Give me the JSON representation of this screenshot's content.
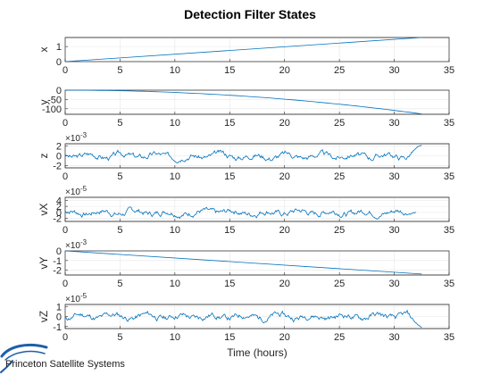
{
  "chart_data": [
    {
      "type": "line",
      "ylabel": "x",
      "xlim": [
        0,
        35
      ],
      "ylim": [
        0,
        1.6
      ],
      "xticks": [
        "0",
        "5",
        "10",
        "15",
        "20",
        "25",
        "30",
        "35"
      ],
      "yticks": [
        "0",
        "1"
      ],
      "ytick_values": [
        0,
        1
      ],
      "exponent": "",
      "series": [
        {
          "shape": "linear",
          "x": [
            0,
            32.5
          ],
          "y": [
            0,
            1.6
          ]
        }
      ]
    },
    {
      "type": "line",
      "ylabel": "y",
      "xlim": [
        0,
        35
      ],
      "ylim": [
        -130,
        0
      ],
      "xticks": [
        "0",
        "5",
        "10",
        "15",
        "20",
        "25",
        "30",
        "35"
      ],
      "yticks": [
        "0",
        "-50",
        "-100"
      ],
      "ytick_values": [
        0,
        -50,
        -100
      ],
      "exponent": "",
      "series": [
        {
          "shape": "quadratic",
          "x": [
            0,
            32.5
          ],
          "y": [
            0,
            -128
          ]
        }
      ]
    },
    {
      "type": "line",
      "ylabel": "z",
      "xlim": [
        0,
        35
      ],
      "ylim": [
        -2.5,
        2.5
      ],
      "xticks": [
        "0",
        "5",
        "10",
        "15",
        "20",
        "25",
        "30",
        "35"
      ],
      "yticks": [
        "2",
        "0",
        "-2"
      ],
      "ytick_values": [
        2,
        0,
        -2
      ],
      "exponent": "×10",
      "exponent_power": "-3",
      "series": [
        {
          "shape": "noise",
          "x": [
            0,
            32.5
          ],
          "amplitude": 0.8,
          "seed": 3,
          "tail_end": 2.2
        }
      ]
    },
    {
      "type": "line",
      "ylabel": "vX",
      "xlim": [
        0,
        35
      ],
      "ylim": [
        -3,
        5
      ],
      "xticks": [
        "0",
        "5",
        "10",
        "15",
        "20",
        "25",
        "30",
        "35"
      ],
      "yticks": [
        "4",
        "2",
        "0",
        "-2"
      ],
      "ytick_values": [
        4,
        2,
        0,
        -2
      ],
      "exponent": "×10",
      "exponent_power": "-5",
      "series": [
        {
          "shape": "noise",
          "x": [
            0,
            32
          ],
          "amplitude": 1.3,
          "seed": 7,
          "tail_end": 0
        }
      ]
    },
    {
      "type": "line",
      "ylabel": "vY",
      "xlim": [
        0,
        35
      ],
      "ylim": [
        -2.5,
        0
      ],
      "xticks": [
        "0",
        "5",
        "10",
        "15",
        "20",
        "25",
        "30",
        "35"
      ],
      "yticks": [
        "0",
        "-1",
        "-2"
      ],
      "ytick_values": [
        0,
        -1,
        -2
      ],
      "exponent": "×10",
      "exponent_power": "-3",
      "series": [
        {
          "shape": "linear",
          "x": [
            0,
            32.5
          ],
          "y": [
            0,
            -2.4
          ]
        }
      ]
    },
    {
      "type": "line",
      "ylabel": "vZ",
      "xlim": [
        0,
        35
      ],
      "ylim": [
        -1.2,
        1.2
      ],
      "xticks": [
        "0",
        "5",
        "10",
        "15",
        "20",
        "25",
        "30",
        "35"
      ],
      "yticks": [
        "1",
        "0",
        "-1"
      ],
      "ytick_values": [
        1,
        0,
        -1
      ],
      "exponent": "×10",
      "exponent_power": "-5",
      "series": [
        {
          "shape": "noise",
          "x": [
            0,
            32.5
          ],
          "amplitude": 0.4,
          "seed": 11,
          "tail_end": -1.1
        }
      ]
    }
  ],
  "figure": {
    "title": "Detection Filter States",
    "xlabel": "Time (hours)",
    "line_color": "#0072bd",
    "axis_color": "#262626",
    "grid_color": "#e6e6e6"
  },
  "brand": {
    "name": "Princeton Satellite Systems",
    "logo": "swoosh-logo",
    "logo_color": "#1f5fa8"
  }
}
